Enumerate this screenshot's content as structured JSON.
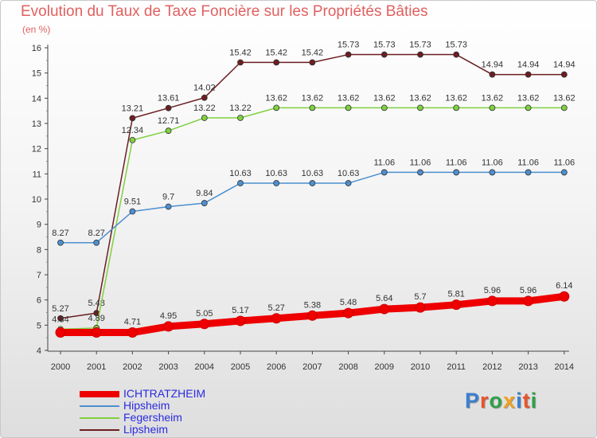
{
  "chart_data": {
    "type": "line",
    "title": "Evolution du Taux de Taxe Foncière sur les Propriétés Bâties",
    "subtitle": "(en %)",
    "xlabel": "",
    "ylabel": "",
    "ylim": [
      4,
      16
    ],
    "x": [
      "2000",
      "2001",
      "2002",
      "2003",
      "2004",
      "2005",
      "2006",
      "2007",
      "2008",
      "2009",
      "2010",
      "2011",
      "2012",
      "2013",
      "2014"
    ],
    "y_ticks": [
      "4",
      "5",
      "6",
      "7",
      "8",
      "9",
      "10",
      "11",
      "12",
      "13",
      "14",
      "15",
      "16"
    ],
    "series": [
      {
        "name": "Lipsheim",
        "color": "#6b1f22",
        "values": [
          5.27,
          5.48,
          13.21,
          13.61,
          14.02,
          15.42,
          15.42,
          15.42,
          15.73,
          15.73,
          15.73,
          15.73,
          14.94,
          14.94,
          14.94
        ],
        "labels": [
          "5.27",
          "5.48",
          "13.21",
          "13.61",
          "14.02",
          "15.42",
          "15.42",
          "15.42",
          "15.73",
          "15.73",
          "15.73",
          "15.73",
          "14.94",
          "14.94",
          "14.94"
        ]
      },
      {
        "name": "Fegersheim",
        "color": "#80d040",
        "values": [
          4.84,
          4.89,
          12.34,
          12.71,
          13.22,
          13.22,
          13.62,
          13.62,
          13.62,
          13.62,
          13.62,
          13.62,
          13.62,
          13.62,
          13.62
        ],
        "labels": [
          "4.84",
          "4.89",
          "12.34",
          "12.71",
          "13.22",
          "13.22",
          "13.62",
          "13.62",
          "13.62",
          "13.62",
          "13.62",
          "13.62",
          "13.62",
          "13.62",
          "13.62"
        ]
      },
      {
        "name": "Hipsheim",
        "color": "#4d8fcf",
        "values": [
          8.27,
          8.27,
          9.51,
          9.7,
          9.84,
          10.63,
          10.63,
          10.63,
          10.63,
          11.06,
          11.06,
          11.06,
          11.06,
          11.06,
          11.06
        ],
        "labels": [
          "8.27",
          "8.27",
          "9.51",
          "9.7",
          "9.84",
          "10.63",
          "10.63",
          "10.63",
          "10.63",
          "11.06",
          "11.06",
          "11.06",
          "11.06",
          "11.06",
          "11.06"
        ]
      },
      {
        "name": "ICHTRATZHEIM",
        "color": "#ee0000",
        "values": [
          4.71,
          4.71,
          4.71,
          4.95,
          5.05,
          5.17,
          5.27,
          5.38,
          5.48,
          5.64,
          5.7,
          5.81,
          5.96,
          5.96,
          6.14
        ],
        "labels": [
          "",
          "",
          "4.71",
          "4.95",
          "5.05",
          "5.17",
          "5.27",
          "5.38",
          "5.48",
          "5.64",
          "5.7",
          "5.81",
          "5.96",
          "5.96",
          "6.14"
        ]
      }
    ],
    "legend": [
      "ICHTRATZHEIM",
      "Hipsheim",
      "Fegersheim",
      "Lipsheim"
    ],
    "legend_placement": "bottom-left",
    "grid": false
  },
  "logo": [
    "P",
    "r",
    "o",
    "x",
    "i",
    "t",
    "i"
  ],
  "logo_colors": [
    "#3a7fd0",
    "#e8542a",
    "#2fa048",
    "#f0a020",
    "#3a7fd0",
    "#e8542a",
    "#2fa048"
  ]
}
